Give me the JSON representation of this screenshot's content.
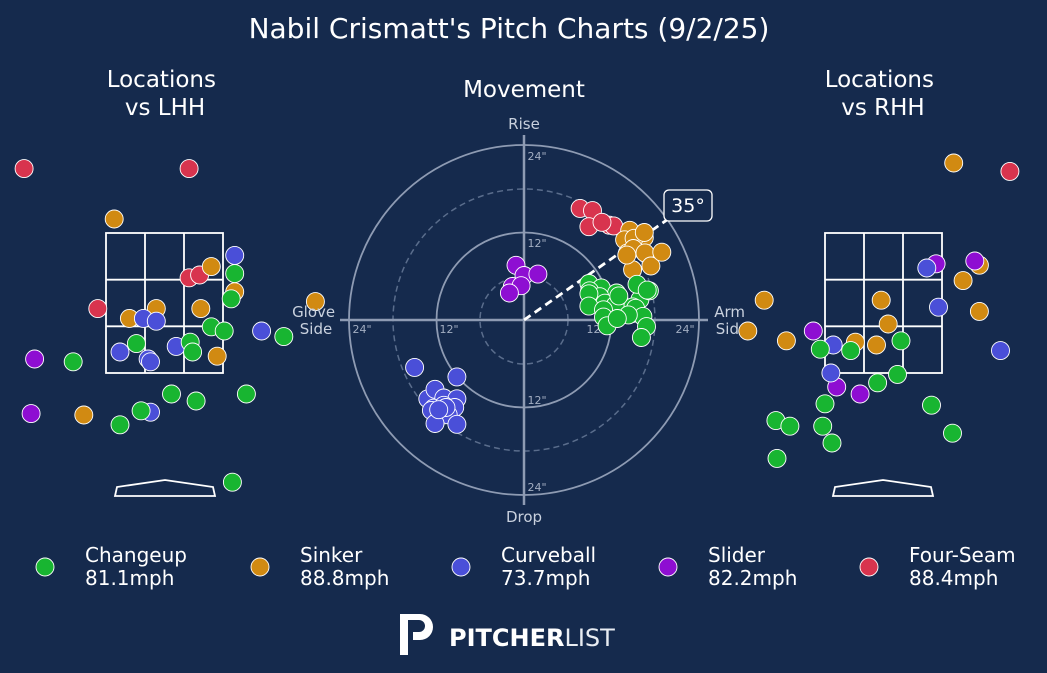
{
  "title": "Nabil Crismatt's Pitch Charts (9/2/25)",
  "colors": {
    "background": "#152a4d",
    "Changeup": "#18b531",
    "Sinker": "#d18a12",
    "Curveball": "#4a4fd8",
    "Slider": "#8e0ed2",
    "Four-Seam": "#d8344e"
  },
  "legend": [
    {
      "pitch": "Changeup",
      "speed": "81.1mph"
    },
    {
      "pitch": "Sinker",
      "speed": "88.8mph"
    },
    {
      "pitch": "Curveball",
      "speed": "73.7mph"
    },
    {
      "pitch": "Slider",
      "speed": "82.2mph"
    },
    {
      "pitch": "Four-Seam",
      "speed": "88.4mph"
    }
  ],
  "brand": {
    "logo_icon": "pitcherlist-p-logo-icon",
    "bold": "PITCHER",
    "light": "LIST"
  },
  "chart_data": [
    {
      "type": "scatter",
      "title": "Locations\nvs LHH",
      "note": "pitch locations, x = horizontal (zone widths from center, + toward right of image), y = height (zone heights, 0 = bottom of zone, 1 = top of zone)",
      "series": [
        {
          "name": "Four-Seam",
          "points": [
            [
              -1.2,
              1.46
            ],
            [
              0.21,
              1.46
            ],
            [
              0.21,
              0.68
            ],
            [
              0.3,
              0.7
            ],
            [
              -0.57,
              0.46
            ]
          ]
        },
        {
          "name": "Sinker",
          "points": [
            [
              -0.43,
              1.1
            ],
            [
              0.4,
              0.76
            ],
            [
              0.6,
              0.58
            ],
            [
              1.29,
              0.51
            ],
            [
              -0.3,
              0.39
            ],
            [
              -0.07,
              0.46
            ],
            [
              0.31,
              0.46
            ],
            [
              0.45,
              0.12
            ],
            [
              -0.69,
              -0.3
            ]
          ]
        },
        {
          "name": "Curveball",
          "points": [
            [
              0.6,
              0.84
            ],
            [
              -0.18,
              0.39
            ],
            [
              -0.07,
              0.37
            ],
            [
              0.83,
              0.3
            ],
            [
              -0.38,
              0.15
            ],
            [
              -0.14,
              0.1
            ],
            [
              0.1,
              0.19
            ],
            [
              -0.12,
              0.08
            ],
            [
              -0.12,
              -0.28
            ]
          ]
        },
        {
          "name": "Changeup",
          "points": [
            [
              0.6,
              0.71
            ],
            [
              0.57,
              0.53
            ],
            [
              0.4,
              0.33
            ],
            [
              0.51,
              0.3
            ],
            [
              0.22,
              0.22
            ],
            [
              0.24,
              0.15
            ],
            [
              1.02,
              0.26
            ],
            [
              -0.24,
              0.21
            ],
            [
              -0.78,
              0.08
            ],
            [
              0.06,
              -0.15
            ],
            [
              0.27,
              -0.2
            ],
            [
              0.7,
              -0.15
            ],
            [
              -0.2,
              -0.27
            ],
            [
              -0.38,
              -0.37
            ],
            [
              0.58,
              -0.78
            ]
          ]
        },
        {
          "name": "Slider",
          "points": [
            [
              -1.11,
              0.1
            ],
            [
              -1.14,
              -0.29
            ]
          ]
        }
      ]
    },
    {
      "type": "scatter",
      "title": "Movement",
      "note": "pitch movement in inches, x positive = Arm Side, y positive = Rise",
      "axis_labels": {
        "top": "Rise",
        "bottom": "Drop",
        "left": "Glove\nSide",
        "right": "Arm\nSide"
      },
      "radial_ticks": [
        "24\"",
        "12\"",
        "12\"",
        "24\"",
        "12\"",
        "24\"",
        "12\"",
        "24\""
      ],
      "rings_inches": [
        6,
        12,
        18,
        24
      ],
      "arm_angle_label": "35°",
      "arm_angle_deg": 35,
      "series": [
        {
          "name": "Four-Seam",
          "points": [
            [
              7.7,
              15.3
            ],
            [
              9.4,
              15.0
            ],
            [
              8.9,
              12.8
            ],
            [
              11.7,
              13.0
            ],
            [
              12.3,
              12.9
            ],
            [
              10.7,
              13.4
            ]
          ]
        },
        {
          "name": "Sinker",
          "points": [
            [
              14.5,
              12.3
            ],
            [
              16.5,
              11.3
            ],
            [
              13.8,
              11.0
            ],
            [
              15.1,
              11.2
            ],
            [
              16.5,
              12.0
            ],
            [
              14.2,
              9.2
            ],
            [
              15.0,
              9.8
            ],
            [
              16.6,
              9.2
            ],
            [
              17.4,
              7.4
            ],
            [
              18.9,
              9.3
            ],
            [
              14.9,
              6.9
            ],
            [
              14.1,
              8.9
            ]
          ]
        },
        {
          "name": "Changeup",
          "points": [
            [
              8.9,
              5.0
            ],
            [
              10.6,
              4.4
            ],
            [
              12.7,
              3.7
            ],
            [
              13.0,
              3.0
            ],
            [
              9.0,
              4.0
            ],
            [
              10.4,
              3.2
            ],
            [
              8.9,
              3.6
            ],
            [
              15.9,
              2.8
            ],
            [
              14.9,
              1.8
            ],
            [
              17.2,
              4.0
            ],
            [
              11.1,
              2.3
            ],
            [
              12.5,
              2.0
            ],
            [
              8.9,
              1.9
            ],
            [
              10.9,
              1.4
            ],
            [
              10.9,
              0.4
            ],
            [
              14.9,
              0.9
            ],
            [
              15.3,
              1.6
            ],
            [
              16.3,
              0.5
            ],
            [
              14.3,
              0.7
            ],
            [
              11.4,
              -0.8
            ],
            [
              16.8,
              -0.9
            ],
            [
              12.8,
              0.2
            ],
            [
              13.0,
              3.3
            ],
            [
              15.5,
              4.9
            ],
            [
              16.1,
              -2.4
            ],
            [
              16.9,
              4.1
            ]
          ]
        },
        {
          "name": "Slider",
          "points": [
            [
              -1.1,
              7.5
            ],
            [
              0.0,
              6.1
            ],
            [
              1.9,
              6.3
            ],
            [
              -1.6,
              4.6
            ],
            [
              -0.4,
              4.7
            ],
            [
              -2.0,
              3.7
            ]
          ]
        },
        {
          "name": "Curveball",
          "points": [
            [
              -15.0,
              -6.5
            ],
            [
              -9.2,
              -7.8
            ],
            [
              -13.2,
              -10.8
            ],
            [
              -12.2,
              -9.5
            ],
            [
              -11.0,
              -10.7
            ],
            [
              -9.2,
              -10.8
            ],
            [
              -12.4,
              -12.1
            ],
            [
              -11.0,
              -11.7
            ],
            [
              -9.5,
              -12.0
            ],
            [
              -12.7,
              -12.4
            ],
            [
              -10.4,
              -13.0
            ],
            [
              -9.2,
              -14.3
            ],
            [
              -12.2,
              -14.2
            ],
            [
              -10.7,
              -12.0
            ],
            [
              -11.7,
              -12.3
            ]
          ]
        }
      ]
    },
    {
      "type": "scatter",
      "title": "Locations\nvs RHH",
      "note": "pitch locations, same units as LHH panel",
      "series": [
        {
          "name": "Sinker",
          "points": [
            [
              0.6,
              1.5
            ],
            [
              0.82,
              0.77
            ],
            [
              0.68,
              0.66
            ],
            [
              -1.02,
              0.52
            ],
            [
              -0.02,
              0.52
            ],
            [
              0.82,
              0.44
            ],
            [
              0.04,
              0.35
            ],
            [
              -1.16,
              0.3
            ],
            [
              -0.83,
              0.23
            ],
            [
              -0.24,
              0.22
            ],
            [
              -0.06,
              0.2
            ]
          ]
        },
        {
          "name": "Four-Seam",
          "points": [
            [
              1.08,
              1.44
            ]
          ]
        },
        {
          "name": "Slider",
          "points": [
            [
              0.45,
              0.78
            ],
            [
              0.78,
              0.8
            ],
            [
              -0.6,
              0.3
            ],
            [
              -0.4,
              -0.1
            ],
            [
              -0.2,
              -0.15
            ]
          ]
        },
        {
          "name": "Curveball",
          "points": [
            [
              0.37,
              0.75
            ],
            [
              0.47,
              0.47
            ],
            [
              -0.43,
              0.2
            ],
            [
              1.0,
              0.16
            ],
            [
              -0.45,
              0.0
            ]
          ]
        },
        {
          "name": "Changeup",
          "points": [
            [
              0.15,
              0.23
            ],
            [
              -0.28,
              0.16
            ],
            [
              -0.54,
              0.17
            ],
            [
              0.12,
              -0.01
            ],
            [
              -0.05,
              -0.07
            ],
            [
              -0.5,
              -0.22
            ],
            [
              0.41,
              -0.23
            ],
            [
              -0.92,
              -0.34
            ],
            [
              -0.8,
              -0.38
            ],
            [
              -0.52,
              -0.38
            ],
            [
              -0.44,
              -0.5
            ],
            [
              0.59,
              -0.43
            ],
            [
              -0.91,
              -0.61
            ]
          ]
        }
      ]
    }
  ]
}
